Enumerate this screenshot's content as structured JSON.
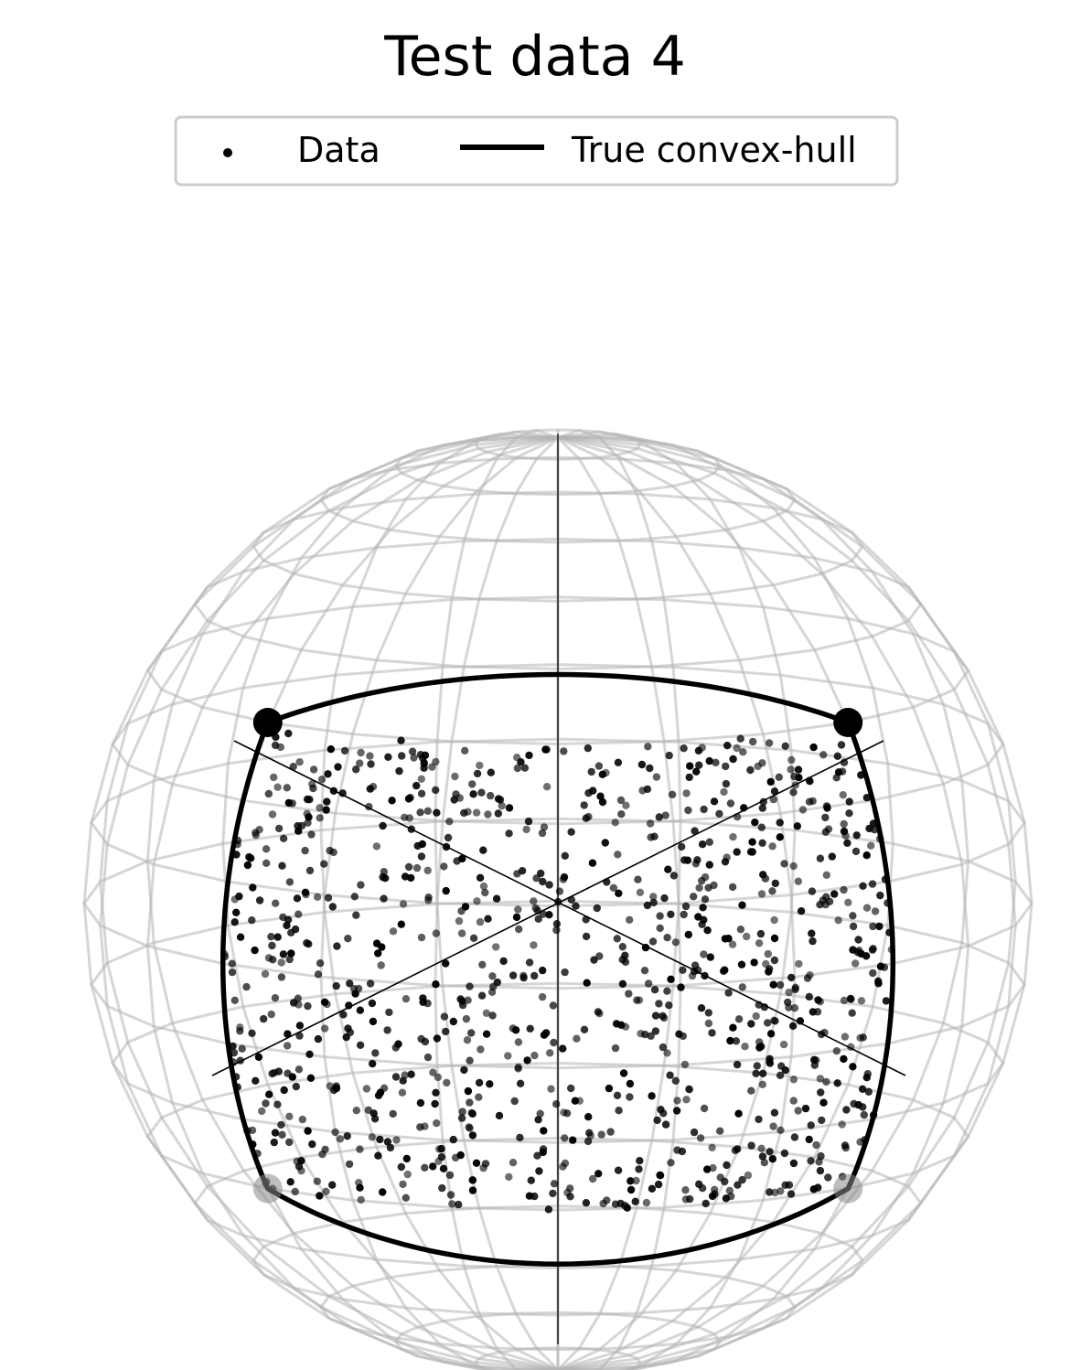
{
  "chart_data": {
    "type": "scatter",
    "title": "Test data 4",
    "legend": {
      "placement": "top-center",
      "entries": [
        {
          "label": "Data",
          "marker": "dot"
        },
        {
          "label": "True convex-hull",
          "marker": "line"
        }
      ]
    },
    "projection": "orthographic unit sphere, wireframe",
    "hull_vertices": [
      {
        "lon_deg": -45,
        "lat_deg": 30
      },
      {
        "lon_deg": 45,
        "lat_deg": 30
      },
      {
        "lon_deg": 45,
        "lat_deg": -30
      },
      {
        "lon_deg": -45,
        "lat_deg": -30
      }
    ],
    "data_region": {
      "lon_range_deg": [
        -45,
        45
      ],
      "lat_range_deg": [
        -30,
        30
      ],
      "approx_count": 1000,
      "distribution": "random uniform inside hull"
    },
    "colors": {
      "data": "#000000",
      "hull": "#000000",
      "wireframe": "#b4b4b4"
    }
  }
}
